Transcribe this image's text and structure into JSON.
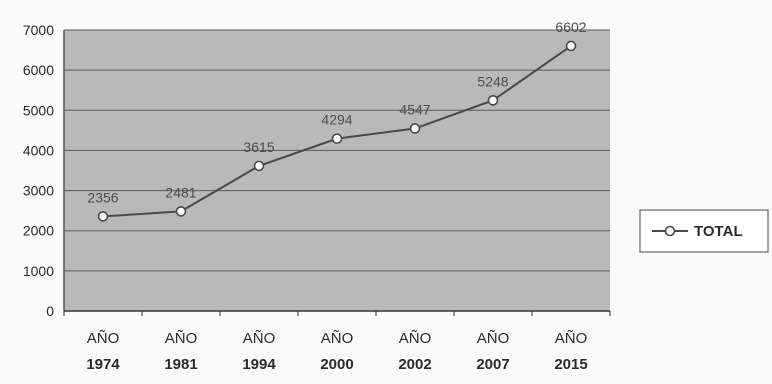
{
  "chart_data": {
    "type": "line",
    "categories": [
      [
        "AÑO",
        "1974"
      ],
      [
        "AÑO",
        "1981"
      ],
      [
        "AÑO",
        "1994"
      ],
      [
        "AÑO",
        "2000"
      ],
      [
        "AÑO",
        "2002"
      ],
      [
        "AÑO",
        "2007"
      ],
      [
        "AÑO",
        "2015"
      ]
    ],
    "series": [
      {
        "name": "TOTAL",
        "values": [
          2356,
          2481,
          3615,
          4294,
          4547,
          5248,
          6602
        ],
        "data_labels": [
          "2356",
          "2481",
          "3615",
          "4294",
          "4547",
          "5248",
          "6602"
        ]
      }
    ],
    "y_ticks": [
      "0",
      "1000",
      "2000",
      "3000",
      "4000",
      "5000",
      "6000",
      "7000"
    ],
    "ylim": [
      0,
      7000
    ],
    "grid": true,
    "legend_position": "right",
    "colors": {
      "plot_background": "#b9b9b9",
      "gridline": "#5a5a5a",
      "series_line": "#4a4a4a",
      "marker_fill": "#ffffff",
      "text": "#2b2b2b",
      "label_text": "#4d4d4d"
    }
  }
}
